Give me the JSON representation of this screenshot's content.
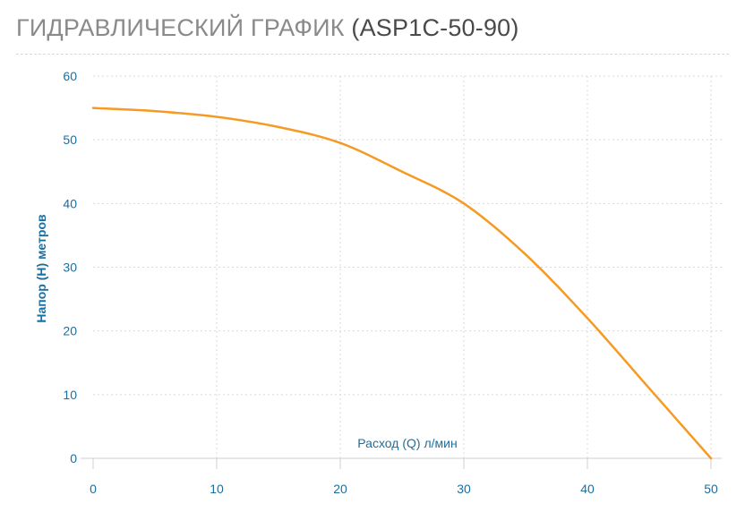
{
  "header": {
    "title": "ГИДРАВЛИЧЕСКИЙ ГРАФИК",
    "model": "(ASP1C-50-90)"
  },
  "colors": {
    "curve": "#f59a23",
    "axis_text": "#1a6fa0",
    "title_text": "#8a8a8a",
    "grid": "#d9d9d9"
  },
  "chart_data": {
    "type": "line",
    "xlabel": "Расход (Q) л/мин",
    "ylabel": "Напор (H) метров",
    "xlim": [
      0,
      50
    ],
    "ylim": [
      0,
      60
    ],
    "xticks": [
      0,
      10,
      20,
      30,
      40,
      50
    ],
    "yticks": [
      0,
      10,
      20,
      30,
      40,
      50,
      60
    ],
    "grid": true,
    "series": [
      {
        "x": [
          0,
          5,
          10,
          15,
          20,
          25,
          30,
          35,
          40,
          45,
          50
        ],
        "y": [
          55,
          54.5,
          53.6,
          52,
          49.5,
          45,
          40,
          32,
          22,
          11,
          0
        ]
      }
    ]
  }
}
